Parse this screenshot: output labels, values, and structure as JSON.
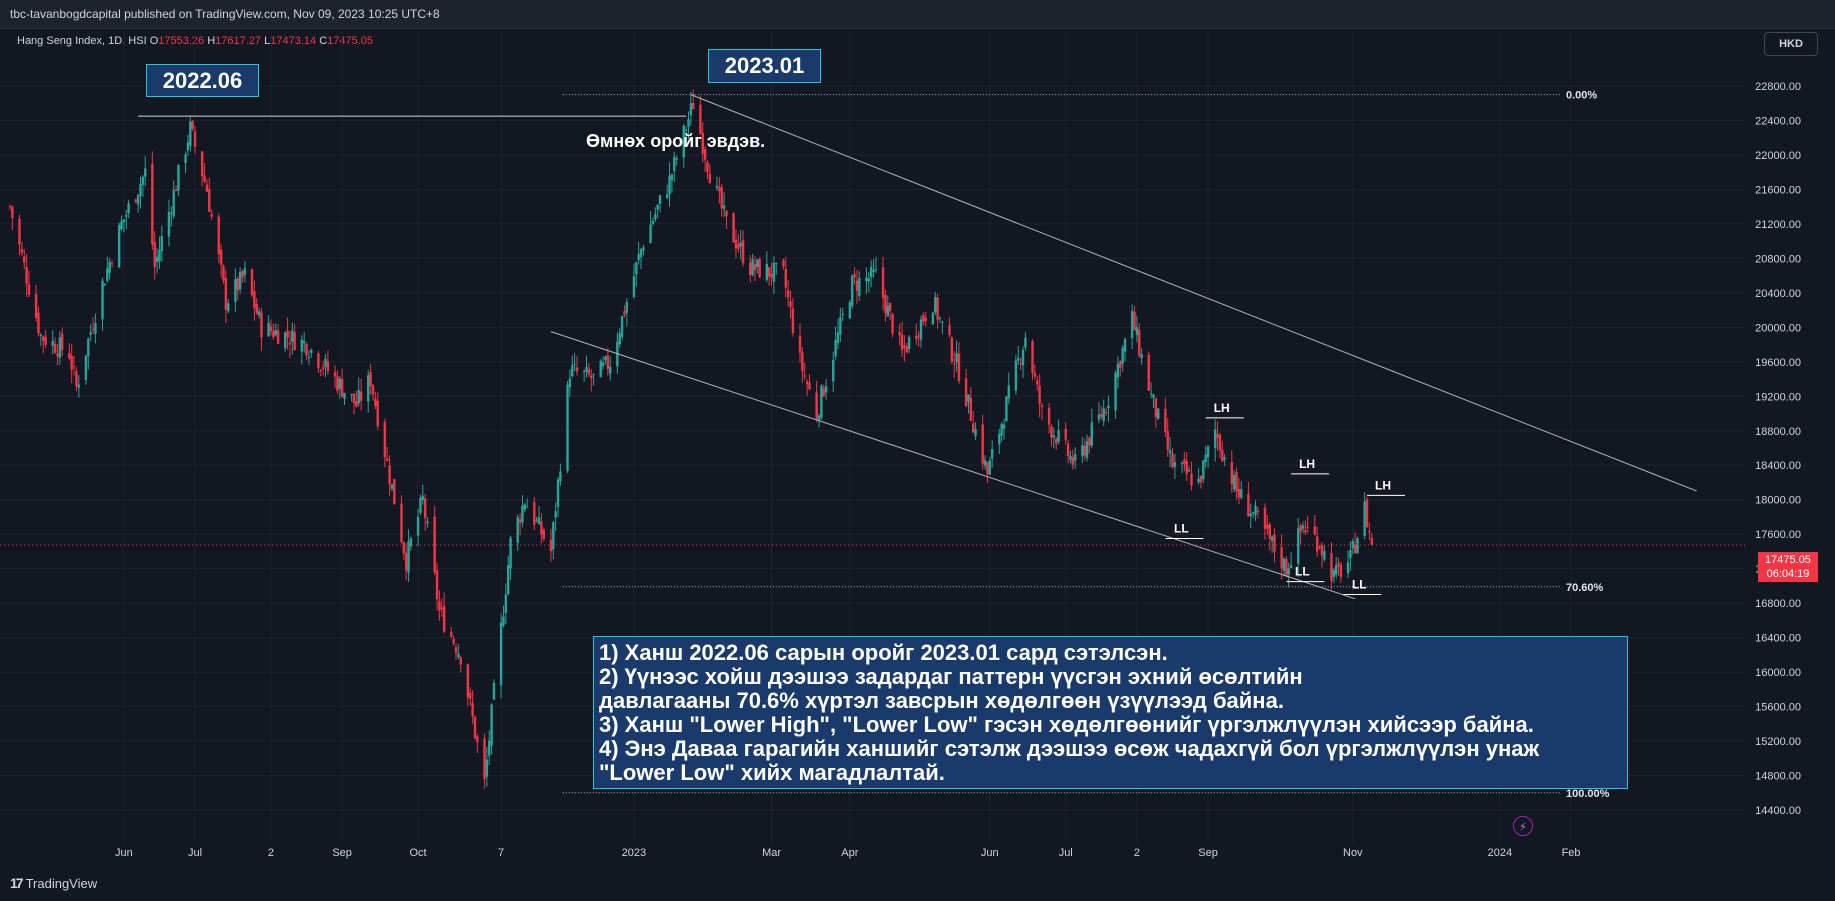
{
  "header": {
    "published": "tbc-tavanbogdcapital published on TradingView.com, Nov 09, 2023 10:25 UTC+8"
  },
  "legend": {
    "symbol": "Hang Seng Index, 1D, HSI",
    "o_label": "O",
    "o_value": "17553.26",
    "h_label": "H",
    "h_value": "17617.27",
    "l_label": "L",
    "l_value": "17473.14",
    "c_label": "C",
    "c_value": "17475.05"
  },
  "currency": "HKD",
  "price_tag": {
    "price": "17475.05",
    "countdown": "06:04:19"
  },
  "brand": {
    "logo": "17",
    "name": "TradingView"
  },
  "annotations": {
    "label_2022": "2022.06",
    "label_2023": "2023.01",
    "prev_high_text": "Өмнөх оройг эвдэв.",
    "lh": "LH",
    "ll": "LL",
    "fib_0": "0.00%",
    "fib_706": "70.60%",
    "fib_100": "100.00%"
  },
  "note": {
    "line1": "1) Ханш 2022.06 сарын оройг 2023.01 сард сэтэлсэн.",
    "line2": "2) Үүнээс хойш дээшээ задардаг паттерн үүсгэн эхний өсөлтийн",
    "line3": "давлагааны 70.6% хүртэл завсрын хөдөлгөөн үзүүлээд байна.",
    "line4": "3) Ханш \"Lower High\", \"Lower Low\" гэсэн хөдөлгөөнийг үргэлжлүүлэн хийсээр байна.",
    "line5": "4) Энэ Даваа гарагийн ханшийг сэтэлж дээшээ өсөж чадахгүй бол үргэлжлүүлэн унаж",
    "line6": "\"Lower Low\" хийх магадлалтай."
  },
  "colors": {
    "up": "#26a69a",
    "down": "#f23645",
    "bg": "#131722",
    "text": "#d1d4dc",
    "box": "#1a3a6b",
    "box_border": "#26c6da"
  },
  "chart_data": {
    "type": "candlestick",
    "title": "Hang Seng Index, 1D, HSI",
    "y_ticks": [
      14400,
      14800,
      15200,
      15600,
      16000,
      16400,
      16800,
      17200,
      17600,
      18000,
      18400,
      18800,
      19200,
      19600,
      20000,
      20400,
      20800,
      21200,
      21600,
      22000,
      22400,
      22800
    ],
    "y_tick_labels": [
      "14400.00",
      "14800.00",
      "15200.00",
      "15600.00",
      "16000.00",
      "16400.00",
      "16800.00",
      "17200.00",
      "17600.00",
      "18000.00",
      "18400.00",
      "18800.00",
      "19200.00",
      "19600.00",
      "20000.00",
      "20400.00",
      "20800.00",
      "21200.00",
      "21600.00",
      "22000.00",
      "22400.00",
      "22800.00"
    ],
    "ylim": [
      14300,
      23200
    ],
    "x_tick_labels": [
      "Jun",
      "Jul",
      "2",
      "Sep",
      "Oct",
      "7",
      "2023",
      "Mar",
      "Apr",
      "Jun",
      "Jul",
      "2",
      "Sep",
      "Nov",
      "2024",
      "Feb"
    ],
    "x_tick_dates": [
      "2022-06-01",
      "2022-07-01",
      "2022-08-02",
      "2022-09-01",
      "2022-10-03",
      "2022-11-07",
      "2023-01-02",
      "2023-03-01",
      "2023-04-03",
      "2023-06-01",
      "2023-07-03",
      "2023-08-02",
      "2023-09-01",
      "2023-11-01",
      "2024-01-02",
      "2024-02-01"
    ],
    "xlim": [
      "2022-04-14",
      "2024-04-08"
    ],
    "last_close": 17475.05,
    "anchor_series": [
      [
        "2022-04-14",
        21400
      ],
      [
        "2022-04-27",
        19900
      ],
      [
        "2022-05-09",
        19700
      ],
      [
        "2022-05-12",
        19300
      ],
      [
        "2022-05-23",
        20500
      ],
      [
        "2022-05-31",
        21200
      ],
      [
        "2022-06-10",
        21800
      ],
      [
        "2022-06-14",
        20700
      ],
      [
        "2022-06-29",
        22300
      ],
      [
        "2022-07-06",
        21600
      ],
      [
        "2022-07-14",
        20300
      ],
      [
        "2022-07-22",
        20600
      ],
      [
        "2022-07-29",
        20000
      ],
      [
        "2022-08-09",
        19900
      ],
      [
        "2022-08-17",
        19800
      ],
      [
        "2022-08-29",
        19400
      ],
      [
        "2022-09-07",
        19100
      ],
      [
        "2022-09-13",
        19400
      ],
      [
        "2022-09-23",
        18000
      ],
      [
        "2022-09-28",
        17300
      ],
      [
        "2022-10-05",
        18000
      ],
      [
        "2022-10-12",
        16700
      ],
      [
        "2022-10-21",
        16200
      ],
      [
        "2022-10-31",
        14700
      ],
      [
        "2022-11-03",
        15500
      ],
      [
        "2022-11-11",
        17500
      ],
      [
        "2022-11-17",
        18000
      ],
      [
        "2022-11-28",
        17400
      ],
      [
        "2022-12-06",
        19500
      ],
      [
        "2022-12-16",
        19400
      ],
      [
        "2022-12-23",
        19600
      ],
      [
        "2023-01-06",
        21000
      ],
      [
        "2023-01-17",
        21700
      ],
      [
        "2023-01-27",
        22600
      ],
      [
        "2023-02-03",
        21800
      ],
      [
        "2023-02-10",
        21200
      ],
      [
        "2023-02-20",
        20700
      ],
      [
        "2023-03-06",
        20600
      ],
      [
        "2023-03-13",
        19600
      ],
      [
        "2023-03-20",
        19000
      ],
      [
        "2023-04-04",
        20500
      ],
      [
        "2023-04-14",
        20600
      ],
      [
        "2023-04-25",
        19700
      ],
      [
        "2023-05-08",
        20300
      ],
      [
        "2023-05-19",
        19500
      ],
      [
        "2023-05-31",
        18300
      ],
      [
        "2023-06-16",
        19900
      ],
      [
        "2023-06-23",
        19000
      ],
      [
        "2023-07-07",
        18400
      ],
      [
        "2023-07-20",
        19100
      ],
      [
        "2023-07-31",
        20100
      ],
      [
        "2023-08-08",
        19200
      ],
      [
        "2023-08-17",
        18400
      ],
      [
        "2023-08-28",
        18200
      ],
      [
        "2023-09-04",
        18800
      ],
      [
        "2023-09-13",
        18100
      ],
      [
        "2023-09-21",
        17800
      ],
      [
        "2023-10-04",
        17200
      ],
      [
        "2023-10-11",
        17700
      ],
      [
        "2023-10-18",
        17500
      ],
      [
        "2023-10-24",
        17100
      ],
      [
        "2023-10-31",
        17300
      ],
      [
        "2023-11-06",
        17900
      ],
      [
        "2023-11-09",
        17475
      ]
    ],
    "drawings": {
      "upper_trendline": [
        [
          "2023-01-26",
          22700
        ],
        [
          "2024-03-25",
          18100
        ]
      ],
      "lower_trendline": [
        [
          "2022-11-28",
          19950
        ],
        [
          "2023-11-02",
          16850
        ]
      ],
      "prev_high_line": [
        [
          "2022-06-07",
          22450
        ],
        [
          "2023-01-24",
          22450
        ]
      ],
      "fib_0_level": 22700,
      "fib_706_level": 16990,
      "fib_100_level": 14600
    }
  }
}
